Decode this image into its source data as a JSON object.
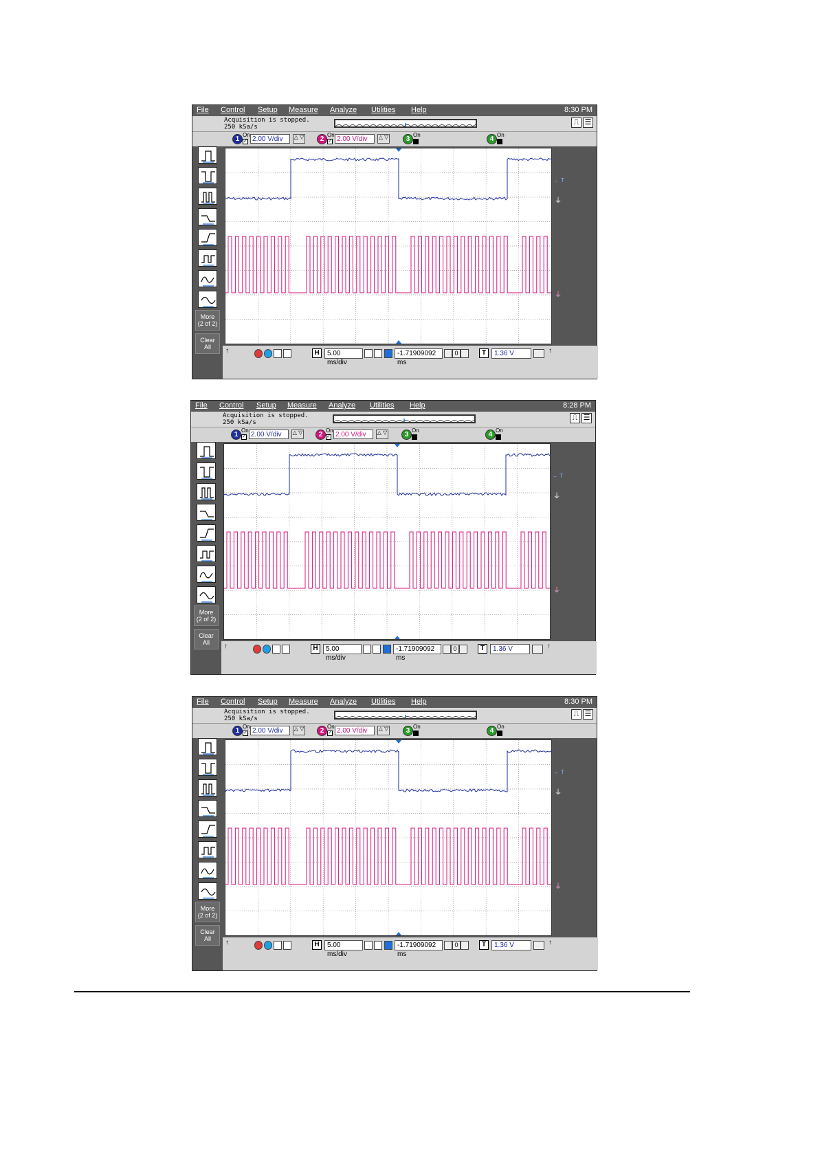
{
  "scopes": [
    {
      "menu": [
        "File",
        "Control",
        "Setup",
        "Measure",
        "Analyze",
        "Utilities",
        "Help"
      ],
      "clock": "8:30 PM",
      "status_line1": "Acquisition is stopped.",
      "status_line2": "250 kSa/s",
      "channels": [
        {
          "num": "1",
          "on": "On",
          "vdiv": "2.00 V/div",
          "color": "#1f2fa0",
          "enabled": true
        },
        {
          "num": "2",
          "on": "On",
          "vdiv": "2.00 V/div",
          "color": "#d4147d",
          "enabled": true
        },
        {
          "num": "3",
          "on": "On",
          "vdiv": "",
          "color": "#2a9a2a",
          "enabled": false
        },
        {
          "num": "4",
          "on": "On",
          "vdiv": "",
          "color": "#2a9a2a",
          "enabled": false
        }
      ],
      "more_label": "More\n(2 of 2)",
      "clear_label": "Clear\nAll",
      "timebase": "5.00 ms/div",
      "delay": "-1.71909092 ms",
      "delay_control": "0",
      "trigger_level": "1.36 V",
      "trig_marker": "← T"
    },
    {
      "menu": [
        "File",
        "Control",
        "Setup",
        "Measure",
        "Analyze",
        "Utilities",
        "Help"
      ],
      "clock": "8:28 PM",
      "status_line1": "Acquisition is stopped.",
      "status_line2": "250 kSa/s",
      "channels": [
        {
          "num": "1",
          "on": "On",
          "vdiv": "2.00 V/div",
          "color": "#1f2fa0",
          "enabled": true
        },
        {
          "num": "2",
          "on": "On",
          "vdiv": "2.00 V/div",
          "color": "#d4147d",
          "enabled": true
        },
        {
          "num": "3",
          "on": "On",
          "vdiv": "",
          "color": "#2a9a2a",
          "enabled": false
        },
        {
          "num": "4",
          "on": "On",
          "vdiv": "",
          "color": "#2a9a2a",
          "enabled": false
        }
      ],
      "more_label": "More\n(2 of 2)",
      "clear_label": "Clear\nAll",
      "timebase": "5.00 ms/div",
      "delay": "-1.71909092 ms",
      "delay_control": "0",
      "trigger_level": "1.36 V",
      "trig_marker": "← T"
    },
    {
      "menu": [
        "File",
        "Control",
        "Setup",
        "Measure",
        "Analyze",
        "Utilities",
        "Help"
      ],
      "clock": "8:30 PM",
      "status_line1": "Acquisition is stopped.",
      "status_line2": "250 kSa/s",
      "channels": [
        {
          "num": "1",
          "on": "On",
          "vdiv": "2.00 V/div",
          "color": "#1f2fa0",
          "enabled": true
        },
        {
          "num": "2",
          "on": "On",
          "vdiv": "2.00 V/div",
          "color": "#d4147d",
          "enabled": true
        },
        {
          "num": "3",
          "on": "On",
          "vdiv": "",
          "color": "#2a9a2a",
          "enabled": false
        },
        {
          "num": "4",
          "on": "On",
          "vdiv": "",
          "color": "#2a9a2a",
          "enabled": false
        }
      ],
      "more_label": "More\n(2 of 2)",
      "clear_label": "Clear\nAll",
      "timebase": "5.00 ms/div",
      "delay": "-1.71909092 ms",
      "delay_control": "0",
      "trigger_level": "1.36 V",
      "trig_marker": "← T"
    }
  ],
  "colors": {
    "ch1": "#1f2fa0",
    "ch2": "#d4147d",
    "panel": "#565656",
    "grid": "#9a9a9a"
  },
  "icons": [
    "pulse-positive-icon",
    "pulse-negative-icon",
    "period-icon",
    "fall-time-icon",
    "rise-time-icon",
    "amplitude-icon",
    "sine-cursor-icon",
    "vrms-icon"
  ]
}
